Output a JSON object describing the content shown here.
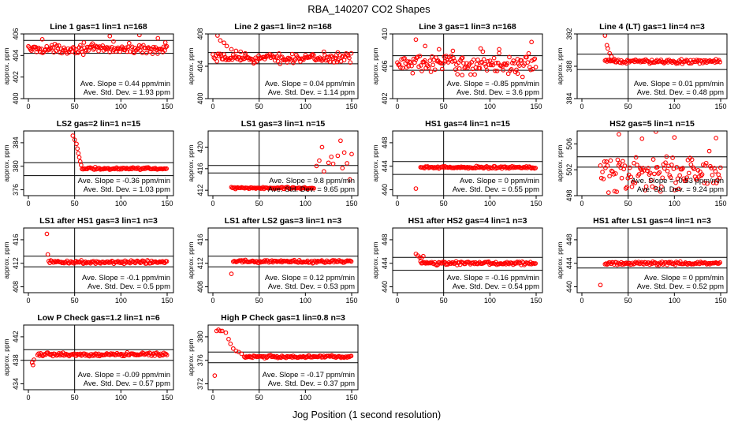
{
  "figure": {
    "title": "RBA_140207  CO2 Shapes",
    "xlabel": "Jog Position (1 second resolution)",
    "point_color": "#ff0000"
  },
  "chart_data": [
    {
      "type": "scatter",
      "title": "Line 1 gas=1 lin=1 n=168",
      "ylabel": "approx. ppm",
      "xlim": [
        0,
        150
      ],
      "xticks": [
        0,
        50,
        100,
        150
      ],
      "ylim": [
        400,
        406
      ],
      "yticks": [
        400,
        402,
        404,
        406
      ],
      "hlines": [
        404.2,
        405.4
      ],
      "vline": 50,
      "slope_text": "Ave. Slope = 0.44  ppm/min",
      "std_text": "Ave. Std. Dev. = 1.93  ppm",
      "level": 404.6,
      "noise": 0.3,
      "outliers": [
        [
          15,
          405.5
        ],
        [
          60,
          405.2
        ],
        [
          88,
          405.8
        ],
        [
          92,
          405.3
        ],
        [
          120,
          405.9
        ],
        [
          140,
          405.6
        ],
        [
          148,
          405.2
        ]
      ]
    },
    {
      "type": "scatter",
      "title": "Line 2 gas=1 lin=2 n=168",
      "ylabel": "approx. ppm",
      "xlim": [
        0,
        150
      ],
      "xticks": [
        0,
        50,
        100,
        150
      ],
      "ylim": [
        400,
        408
      ],
      "yticks": [
        400,
        404,
        408
      ],
      "hlines": [
        404.3,
        405.7
      ],
      "vline": 50,
      "slope_text": "Ave. Slope = 0.04  ppm/min",
      "std_text": "Ave. Std. Dev. = 1.14  ppm",
      "level": 405.0,
      "noise": 0.4,
      "outliers": [
        [
          2,
          408.5
        ],
        [
          5,
          407.8
        ],
        [
          8,
          407.2
        ],
        [
          12,
          406.9
        ],
        [
          15,
          406.5
        ],
        [
          20,
          406.1
        ],
        [
          25,
          405.9
        ],
        [
          30,
          405.8
        ],
        [
          35,
          405.6
        ],
        [
          120,
          405.8
        ],
        [
          135,
          405.7
        ]
      ]
    },
    {
      "type": "scatter",
      "title": "Line 3 gas=1 lin=3 n=168",
      "ylabel": "approx. ppm",
      "xlim": [
        0,
        150
      ],
      "xticks": [
        0,
        50,
        100,
        150
      ],
      "ylim": [
        402,
        410
      ],
      "yticks": [
        402,
        406,
        410
      ],
      "hlines": [
        405.5,
        407.3
      ],
      "vline": 50,
      "slope_text": "Ave. Slope = -0.85  ppm/min",
      "std_text": "Ave. Std. Dev. = 3.6  ppm",
      "level": 406.3,
      "noise": 0.9,
      "outliers": [
        [
          5,
          410.5
        ],
        [
          10,
          411.0
        ],
        [
          15,
          410.6
        ],
        [
          20,
          409.3
        ],
        [
          30,
          408.5
        ],
        [
          45,
          408.1
        ],
        [
          60,
          407.9
        ],
        [
          70,
          404.9
        ],
        [
          90,
          408.2
        ],
        [
          110,
          408.1
        ],
        [
          130,
          405.1
        ],
        [
          145,
          409.0
        ]
      ]
    },
    {
      "type": "scatter",
      "title": "Line 4 (LT) gas=1 lin=4 n=3",
      "ylabel": "approx. ppm",
      "xlim": [
        0,
        150
      ],
      "xticks": [
        0,
        50,
        100,
        150
      ],
      "ylim": [
        384,
        392
      ],
      "yticks": [
        384,
        388,
        392
      ],
      "hlines": [
        387.6,
        389.5
      ],
      "vline": 50,
      "slope_text": "Ave. Slope = 0.01  ppm/min",
      "std_text": "Ave. Std. Dev. = 0.48  ppm",
      "level": 388.6,
      "noise": 0.2,
      "xstart": 25,
      "outliers": [
        [
          25,
          391.8
        ],
        [
          27,
          390.6
        ],
        [
          28,
          390.2
        ],
        [
          30,
          389.6
        ],
        [
          32,
          389.2
        ],
        [
          35,
          388.9
        ]
      ]
    },
    {
      "type": "scatter",
      "title": "LS2 gas=2 lin=1 n=15",
      "ylabel": "approx. ppm",
      "xlim": [
        0,
        150
      ],
      "xticks": [
        0,
        50,
        100,
        150
      ],
      "ylim": [
        375,
        386
      ],
      "yticks": [
        376,
        380,
        384
      ],
      "hlines": [
        378.4,
        380.6
      ],
      "vline": 50,
      "slope_text": "Ave. Slope = -0.36  ppm/min",
      "std_text": "Ave. Std. Dev. = 1.03  ppm",
      "level": 379.6,
      "noise": 0.15,
      "xstart": 58,
      "outliers": [
        [
          48,
          385.2
        ],
        [
          50,
          384.5
        ],
        [
          52,
          383.8
        ],
        [
          53,
          383.0
        ],
        [
          54,
          382.2
        ],
        [
          55,
          381.5
        ],
        [
          56,
          380.8
        ],
        [
          57,
          380.2
        ]
      ]
    },
    {
      "type": "scatter",
      "title": "LS1 gas=3 lin=1 n=15",
      "ylabel": "approx. ppm",
      "xlim": [
        0,
        150
      ],
      "xticks": [
        0,
        50,
        100,
        150
      ],
      "ylim": [
        411,
        423
      ],
      "yticks": [
        412,
        416,
        420
      ],
      "hlines": [
        415.2,
        416.6
      ],
      "vline": 50,
      "slope_text": "Ave. Slope = 9.8  ppm/min",
      "std_text": "Ave. Std. Dev. = 9.65  ppm",
      "level": 412.4,
      "noise": 0.15,
      "xstart": 20,
      "xend": 110,
      "outliers": [
        [
          112,
          416.5
        ],
        [
          115,
          417.5
        ],
        [
          118,
          420.0
        ],
        [
          120,
          415.5
        ],
        [
          125,
          417.1
        ],
        [
          128,
          418.2
        ],
        [
          130,
          416.9
        ],
        [
          135,
          418.4
        ],
        [
          138,
          421.2
        ],
        [
          140,
          416.1
        ],
        [
          142,
          419.0
        ],
        [
          145,
          417.0
        ],
        [
          148,
          414.0
        ],
        [
          150,
          418.7
        ]
      ]
    },
    {
      "type": "scatter",
      "title": "HS1 gas=4 lin=1 n=15",
      "ylabel": "approx. ppm",
      "xlim": [
        0,
        150
      ],
      "xticks": [
        0,
        50,
        100,
        150
      ],
      "ylim": [
        439,
        450
      ],
      "yticks": [
        440,
        444,
        448
      ],
      "hlines": [
        442.6,
        444.8
      ],
      "vline": 50,
      "slope_text": "Ave. Slope = 0  ppm/min",
      "std_text": "Ave. Std. Dev. = 0.55  ppm",
      "level": 443.8,
      "noise": 0.15,
      "xstart": 25,
      "outliers": [
        [
          20,
          440.2
        ]
      ]
    },
    {
      "type": "scatter",
      "title": "HS2 gas=5 lin=1 n=15",
      "ylabel": "approx. ppm",
      "xlim": [
        0,
        150
      ],
      "xticks": [
        0,
        50,
        100,
        150
      ],
      "ylim": [
        498,
        508
      ],
      "yticks": [
        498,
        502,
        506
      ],
      "hlines": [
        502.4,
        504.0
      ],
      "vline": 50,
      "slope_text": "Ave. Slope = -0.53  ppm/min",
      "std_text": "Ave. Std. Dev. = 9.24  ppm",
      "level": 501.5,
      "noise": 2.2,
      "xstart": 20,
      "outliers": [
        [
          40,
          507.5
        ],
        [
          65,
          506.8
        ],
        [
          80,
          507.9
        ],
        [
          100,
          507.0
        ],
        [
          130,
          508.3
        ],
        [
          145,
          506.9
        ]
      ]
    },
    {
      "type": "scatter",
      "title": "LS1 after HS1 gas=3 lin=1 n=3",
      "ylabel": "approx. ppm",
      "xlim": [
        0,
        150
      ],
      "xticks": [
        0,
        50,
        100,
        150
      ],
      "ylim": [
        407,
        418
      ],
      "yticks": [
        408,
        412,
        416
      ],
      "hlines": [
        411.4,
        413.2
      ],
      "vline": 50,
      "slope_text": "Ave. Slope = -0.1  ppm/min",
      "std_text": "Ave. Std. Dev. = 0.5  ppm",
      "level": 412.2,
      "noise": 0.2,
      "xstart": 22,
      "outliers": [
        [
          20,
          417.0
        ],
        [
          21,
          413.5
        ]
      ]
    },
    {
      "type": "scatter",
      "title": "LS1 after LS2 gas=3 lin=1 n=3",
      "ylabel": "approx. ppm",
      "xlim": [
        0,
        150
      ],
      "xticks": [
        0,
        50,
        100,
        150
      ],
      "ylim": [
        407,
        418
      ],
      "yticks": [
        408,
        412,
        416
      ],
      "hlines": [
        411.4,
        413.2
      ],
      "vline": 50,
      "slope_text": "Ave. Slope = 0.12  ppm/min",
      "std_text": "Ave. Std. Dev. = 0.53  ppm",
      "level": 412.3,
      "noise": 0.2,
      "xstart": 22,
      "outliers": [
        [
          20,
          410.2
        ]
      ]
    },
    {
      "type": "scatter",
      "title": "HS1 after HS2 gas=4 lin=1 n=3",
      "ylabel": "approx. ppm",
      "xlim": [
        0,
        150
      ],
      "xticks": [
        0,
        50,
        100,
        150
      ],
      "ylim": [
        439,
        450
      ],
      "yticks": [
        440,
        444,
        448
      ],
      "hlines": [
        442.8,
        445.0
      ],
      "vline": 50,
      "slope_text": "Ave. Slope = -0.16  ppm/min",
      "std_text": "Ave. Std. Dev. = 0.54  ppm",
      "level": 444.0,
      "noise": 0.2,
      "xstart": 25,
      "outliers": [
        [
          20,
          445.6
        ],
        [
          22,
          445.3
        ],
        [
          24,
          445.0
        ],
        [
          26,
          444.9
        ],
        [
          28,
          445.2
        ]
      ]
    },
    {
      "type": "scatter",
      "title": "HS1 after LS1 gas=4 lin=1 n=3",
      "ylabel": "approx. ppm",
      "xlim": [
        0,
        150
      ],
      "xticks": [
        0,
        50,
        100,
        150
      ],
      "ylim": [
        439,
        450
      ],
      "yticks": [
        440,
        444,
        448
      ],
      "hlines": [
        443.2,
        445.0
      ],
      "vline": 50,
      "slope_text": "Ave. Slope = 0  ppm/min",
      "std_text": "Ave. Std. Dev. = 0.52  ppm",
      "level": 444.0,
      "noise": 0.2,
      "xstart": 25,
      "outliers": [
        [
          20,
          440.3
        ]
      ]
    },
    {
      "type": "scatter",
      "title": "Low P Check gas=1.2 lin=1 n=6",
      "ylabel": "approx. ppm",
      "xlim": [
        0,
        150
      ],
      "xticks": [
        0,
        50,
        100,
        150
      ],
      "ylim": [
        433,
        444
      ],
      "yticks": [
        434,
        438,
        442
      ],
      "hlines": [
        438.0,
        439.8
      ],
      "vline": 50,
      "slope_text": "Ave. Slope = -0.09  ppm/min",
      "std_text": "Ave. Std. Dev. = 0.57  ppm",
      "level": 439.0,
      "noise": 0.2,
      "xstart": 10,
      "outliers": [
        [
          4,
          437.6
        ],
        [
          6,
          438.1
        ],
        [
          5,
          437.2
        ]
      ]
    },
    {
      "type": "scatter",
      "title": "High P Check gas=1 lin=0.8 n=3",
      "ylabel": "approx. ppm",
      "xlim": [
        0,
        150
      ],
      "xticks": [
        0,
        50,
        100,
        150
      ],
      "ylim": [
        371,
        382
      ],
      "yticks": [
        372,
        376,
        380
      ],
      "hlines": [
        375.6,
        377.4
      ],
      "vline": 50,
      "slope_text": "Ave. Slope = -0.17  ppm/min",
      "std_text": "Ave. Std. Dev. = 0.37  ppm",
      "level": 376.6,
      "noise": 0.15,
      "xstart": 34,
      "outliers": [
        [
          2,
          373.4
        ],
        [
          4,
          381.0
        ],
        [
          6,
          381.2
        ],
        [
          8,
          381.0
        ],
        [
          10,
          381.0
        ],
        [
          14,
          380.7
        ],
        [
          17,
          379.6
        ],
        [
          19,
          378.8
        ],
        [
          22,
          378.0
        ],
        [
          25,
          377.6
        ],
        [
          28,
          377.4
        ],
        [
          31,
          377.1
        ]
      ]
    }
  ]
}
